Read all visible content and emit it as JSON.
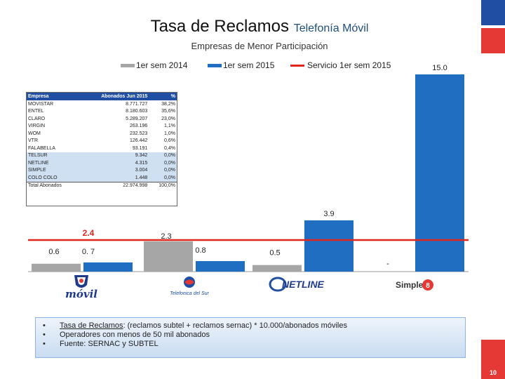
{
  "header": {
    "title_main": "Tasa de Reclamos",
    "title_sub": "Telefonía Móvil",
    "subtitle": "Empresas de Menor Participación"
  },
  "colors": {
    "sem2014": "#a6a6a6",
    "sem2015": "#1f6ec2",
    "servicio": "#e0261c",
    "accent_blue": "#1f4ea3",
    "accent_red": "#e53935"
  },
  "chart_data": {
    "type": "bar",
    "title": "Empresas de Menor Participación",
    "categories": [
      "Colo Colo Móvil",
      "Telefónica del Sur",
      "Netline",
      "Simple"
    ],
    "series": [
      {
        "name": "1er sem 2014",
        "values": [
          0.6,
          2.3,
          0.5,
          null
        ],
        "labels": [
          "0.6",
          "2.3",
          "0.5",
          ""
        ]
      },
      {
        "name": "1er sem 2015",
        "values": [
          0.7,
          0.8,
          3.9,
          15.0
        ],
        "labels": [
          "0. 7",
          "0.8",
          "3.9",
          "15.0"
        ]
      }
    ],
    "line": {
      "name": "Servicio 1er sem 2015",
      "value": 2.4,
      "label": "2.4"
    },
    "missing_label": "-",
    "ylim": [
      0,
      15.0
    ],
    "legend_position": "top",
    "grid": false
  },
  "legend": {
    "items": [
      "1er sem 2014",
      "1er sem 2015",
      "Servicio 1er sem 2015"
    ]
  },
  "logos": {
    "colocolo": "móvil",
    "telsur": "Telefonica del Sur",
    "netline": "NETLINE",
    "simple": "Simple"
  },
  "table": {
    "headers": [
      "Empresa",
      "Abonados Jun 2015",
      "%"
    ],
    "rows": [
      [
        "MOVISTAR",
        "8.771.727",
        "38,2%"
      ],
      [
        "ENTEL",
        "8.180.603",
        "35,6%"
      ],
      [
        "CLARO",
        "5.289.207",
        "23,0%"
      ],
      [
        "VIRGIN",
        "263.196",
        "1,1%"
      ],
      [
        "WOM",
        "232.523",
        "1,0%"
      ],
      [
        "VTR",
        "126.442",
        "0,6%"
      ],
      [
        "FALABELLA",
        "93.191",
        "0,4%"
      ],
      [
        "TELSUR",
        "9.342",
        "0,0%"
      ],
      [
        "NETLINE",
        "4.315",
        "0,0%"
      ],
      [
        "SIMPLE",
        "3.004",
        "0,0%"
      ],
      [
        "COLO COLO",
        "1.448",
        "0,0%"
      ],
      [
        "Total Abonados",
        "22.974.998",
        "100,0%"
      ]
    ]
  },
  "notes": {
    "n1_label": "Tasa de Reclamos",
    "n1_text": ": (reclamos subtel + reclamos sernac) * 10.000/abonados móviles",
    "n2": "Operadores con menos de 50 mil abonados",
    "n3": "Fuente: SERNAC y SUBTEL"
  },
  "page_number": "10"
}
